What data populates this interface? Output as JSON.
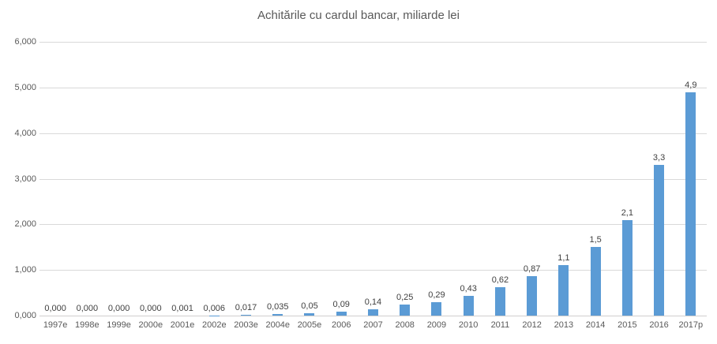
{
  "chart_data": {
    "type": "bar",
    "title": "Achitările cu cardul bancar, miliarde lei",
    "categories": [
      "1997e",
      "1998e",
      "1999e",
      "2000e",
      "2001e",
      "2002e",
      "2003e",
      "2004e",
      "2005e",
      "2006",
      "2007",
      "2008",
      "2009",
      "2010",
      "2011",
      "2012",
      "2013",
      "2014",
      "2015",
      "2016",
      "2017p"
    ],
    "values": [
      0.0,
      0.0,
      0.0,
      0.0,
      0.001,
      0.006,
      0.017,
      0.035,
      0.05,
      0.09,
      0.14,
      0.25,
      0.29,
      0.43,
      0.62,
      0.87,
      1.1,
      1.5,
      2.1,
      3.3,
      4.9
    ],
    "data_labels": [
      "0,000",
      "0,000",
      "0,000",
      "0,000",
      "0,001",
      "0,006",
      "0,017",
      "0,035",
      "0,05",
      "0,09",
      "0,14",
      "0,25",
      "0,29",
      "0,43",
      "0,62",
      "0,87",
      "1,1",
      "1,5",
      "2,1",
      "3,3",
      "4,9"
    ],
    "y_tick_labels": [
      "0,000",
      "1,000",
      "2,000",
      "3,000",
      "4,000",
      "5,000",
      "6,000"
    ],
    "y_tick_values": [
      0,
      1,
      2,
      3,
      4,
      5,
      6
    ],
    "ylim": [
      0,
      6
    ],
    "xlabel": "",
    "ylabel": "",
    "grid": true,
    "legend_position": "none",
    "bar_color": "#5b9bd5",
    "gridline_color": "#d9d9d9",
    "axis_text_color": "#595959",
    "data_label_color": "#404040",
    "title_color": "#595959"
  }
}
